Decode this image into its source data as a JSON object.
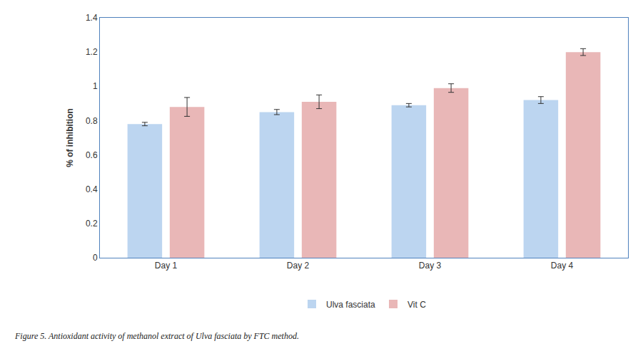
{
  "chart_data": {
    "type": "bar",
    "caption": "Figure 5. Antioxidant activity of methanol extract of Ulva fasciata by FTC method.",
    "y_label": "% of inhibition",
    "categories": [
      "Day 1",
      "Day 2",
      "Day 3",
      "Day 4"
    ],
    "series": [
      {
        "name": "Ulva fasciata",
        "color": "#bcd5f0",
        "values": [
          0.78,
          0.85,
          0.89,
          0.92
        ],
        "errors": [
          0.01,
          0.015,
          0.01,
          0.02
        ]
      },
      {
        "name": "Vit C",
        "color": "#e9b7b7",
        "values": [
          0.88,
          0.91,
          0.99,
          1.2
        ],
        "errors": [
          0.055,
          0.04,
          0.025,
          0.02
        ]
      }
    ],
    "ylim": [
      0,
      1.4
    ],
    "yticks": [
      0,
      0.2,
      0.4,
      0.6,
      0.8,
      1,
      1.2,
      1.4
    ],
    "grid": false,
    "legend": "bottom"
  }
}
